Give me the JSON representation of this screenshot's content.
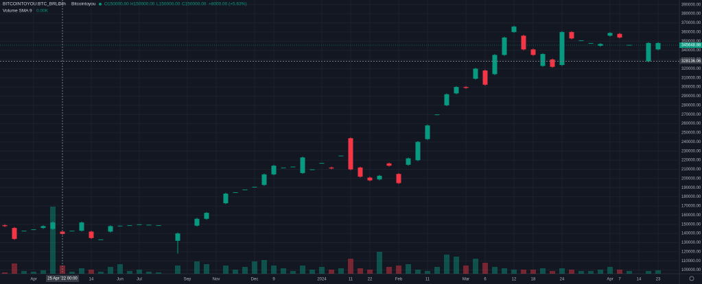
{
  "chart_data": {
    "type": "candlestick",
    "title": "BITCOINTOYOU:BTC_BRLC",
    "interval": "24h",
    "exchange": "Bitcointoyou",
    "ohlc_legend": [
      "O150000.00",
      "H150000.00",
      "L150000.00",
      "C150000.00",
      "+8000.00 (+5.63%)"
    ],
    "indicator": "Volume SMA 9",
    "indicator_value": "0.00K",
    "categories": [
      null,
      null,
      null,
      "Apr",
      null,
      null,
      null,
      null,
      null,
      "14",
      null,
      null,
      "Jun",
      null,
      "Jul",
      null,
      null,
      null,
      null,
      "Sep",
      null,
      null,
      "Nov",
      null,
      null,
      null,
      "Dec",
      null,
      "9",
      null,
      null,
      null,
      null,
      "2024",
      null,
      null,
      "11",
      null,
      "22",
      null,
      null,
      "Feb",
      null,
      null,
      "11",
      null,
      null,
      null,
      "Mar",
      null,
      "6",
      null,
      null,
      "12",
      null,
      "18",
      null,
      null,
      "24",
      null,
      null,
      null,
      null,
      "Apr",
      "7",
      null,
      "14",
      null,
      "23",
      null
    ],
    "open": [
      149000,
      146000,
      143000,
      144500,
      146000,
      145000,
      142000,
      143000,
      143000,
      142000,
      133500,
      142000,
      148500,
      149000,
      150000,
      149500,
      149000,
      null,
      132000,
      null,
      148500,
      156000,
      null,
      173000,
      185000,
      188000,
      191000,
      193000,
      204500,
      212000,
      213000,
      206000,
      210000,
      217000,
      212000,
      225000,
      244000,
      212000,
      201000,
      199000,
      216500,
      205000,
      215000,
      220000,
      243000,
      270000,
      280000,
      293000,
      300000,
      309000,
      318000,
      314000,
      335000,
      360000,
      356000,
      341000,
      323000,
      330000,
      324000,
      360000,
      351000,
      348000,
      345000,
      356000,
      358000,
      346000,
      null,
      328000,
      341000,
      null
    ],
    "high": [
      150000,
      147000,
      143000,
      144500,
      149000,
      153000,
      143000,
      143000,
      153000,
      143000,
      133500,
      149000,
      148500,
      149000,
      150000,
      149500,
      149000,
      null,
      141000,
      null,
      157000,
      163500,
      null,
      184500,
      185000,
      188000,
      191000,
      205500,
      215000,
      212000,
      213000,
      224000,
      210000,
      217000,
      213000,
      225000,
      245000,
      213000,
      202000,
      204000,
      217500,
      206000,
      223000,
      241000,
      259000,
      270000,
      293000,
      301000,
      301000,
      321000,
      319000,
      336000,
      355000,
      367000,
      357000,
      342000,
      337000,
      331000,
      361000,
      361000,
      351000,
      348000,
      348000,
      360000,
      359000,
      346000,
      null,
      349000,
      349000,
      null
    ],
    "low": [
      147000,
      133000,
      143000,
      144500,
      145000,
      144000,
      138500,
      143000,
      142000,
      134000,
      133500,
      141000,
      148500,
      149000,
      150000,
      149500,
      149000,
      null,
      118000,
      null,
      147500,
      155000,
      null,
      172000,
      185000,
      188000,
      191000,
      192000,
      203500,
      212000,
      213000,
      205000,
      210000,
      217000,
      210000,
      225000,
      209000,
      201000,
      197000,
      198000,
      213000,
      194000,
      214000,
      219000,
      242000,
      270000,
      279000,
      292000,
      298000,
      308000,
      301500,
      313000,
      334000,
      359000,
      340000,
      334000,
      322000,
      321000,
      323000,
      352000,
      351000,
      348000,
      344000,
      355000,
      353000,
      346000,
      null,
      327000,
      340000,
      null
    ],
    "close": [
      148000,
      134000,
      143000,
      144500,
      148000,
      152000,
      139500,
      143000,
      152000,
      135000,
      133500,
      148000,
      148500,
      149000,
      150000,
      149500,
      149000,
      null,
      140000,
      null,
      156000,
      162500,
      null,
      183500,
      185000,
      188000,
      191000,
      204500,
      214000,
      212000,
      213000,
      223000,
      210000,
      217000,
      211000,
      225000,
      210000,
      202000,
      198000,
      203000,
      214000,
      195000,
      222000,
      240000,
      258000,
      270000,
      292000,
      300000,
      299000,
      320000,
      302500,
      335000,
      354000,
      366000,
      341000,
      335000,
      336000,
      322000,
      360000,
      353000,
      351000,
      348000,
      347000,
      359000,
      354000,
      346000,
      null,
      348000,
      348000,
      null
    ],
    "volume": [
      2,
      15,
      4,
      3,
      5,
      98,
      12,
      3,
      8,
      6,
      3,
      10,
      14,
      4,
      6,
      3,
      2,
      null,
      12,
      null,
      18,
      14,
      null,
      12,
      6,
      10,
      18,
      20,
      12,
      8,
      4,
      12,
      6,
      10,
      6,
      8,
      22,
      8,
      6,
      32,
      10,
      12,
      14,
      6,
      4,
      10,
      28,
      25,
      12,
      22,
      16,
      10,
      8,
      6,
      6,
      6,
      8,
      4,
      8,
      6,
      4,
      4,
      6,
      10,
      6,
      4,
      null,
      4,
      5,
      null
    ],
    "volume_lim": [
      0,
      400
    ],
    "up_color": "#089981",
    "down_color": "#f23645",
    "ylim": [
      96000,
      395000
    ],
    "yticks": [
      {
        "value": 100000,
        "label": "100000.00"
      },
      {
        "value": 110000,
        "label": "110000.00"
      },
      {
        "value": 120000,
        "label": "120000.00"
      },
      {
        "value": 130000,
        "label": "130000.00"
      },
      {
        "value": 140000,
        "label": "140000.00"
      },
      {
        "value": 150000,
        "label": "150000.00"
      },
      {
        "value": 160000,
        "label": "160000.00"
      },
      {
        "value": 170000,
        "label": "170000.00"
      },
      {
        "value": 180000,
        "label": "180000.00"
      },
      {
        "value": 190000,
        "label": "190000.00"
      },
      {
        "value": 200000,
        "label": "200000.00"
      },
      {
        "value": 210000,
        "label": "210000.00"
      },
      {
        "value": 220000,
        "label": "220000.00"
      },
      {
        "value": 230000,
        "label": "230000.00"
      },
      {
        "value": 240000,
        "label": "240000.00"
      },
      {
        "value": 250000,
        "label": "250000.00"
      },
      {
        "value": 260000,
        "label": "260000.00"
      },
      {
        "value": 270000,
        "label": "270000.00"
      },
      {
        "value": 280000,
        "label": "280000.00"
      },
      {
        "value": 290000,
        "label": "290000.00"
      },
      {
        "value": 300000,
        "label": "300000.00"
      },
      {
        "value": 310000,
        "label": "310000.00"
      },
      {
        "value": 320000,
        "label": "320000.00"
      },
      {
        "value": 330000,
        "label": "330000.00"
      },
      {
        "value": 340000,
        "label": "340000.00"
      },
      {
        "value": 350000,
        "label": "350000.00"
      },
      {
        "value": 360000,
        "label": "360000.00"
      },
      {
        "value": 370000,
        "label": "370000.00"
      },
      {
        "value": 380000,
        "label": "380000.00"
      },
      {
        "value": 390000,
        "label": "390000.00"
      }
    ],
    "grid": true,
    "last_price": {
      "value": 345648.88,
      "label": "345648.88"
    },
    "crosshair": {
      "value": 328136.06,
      "label": "328136.06",
      "x_label": "25 Apr '22  00:00"
    }
  }
}
